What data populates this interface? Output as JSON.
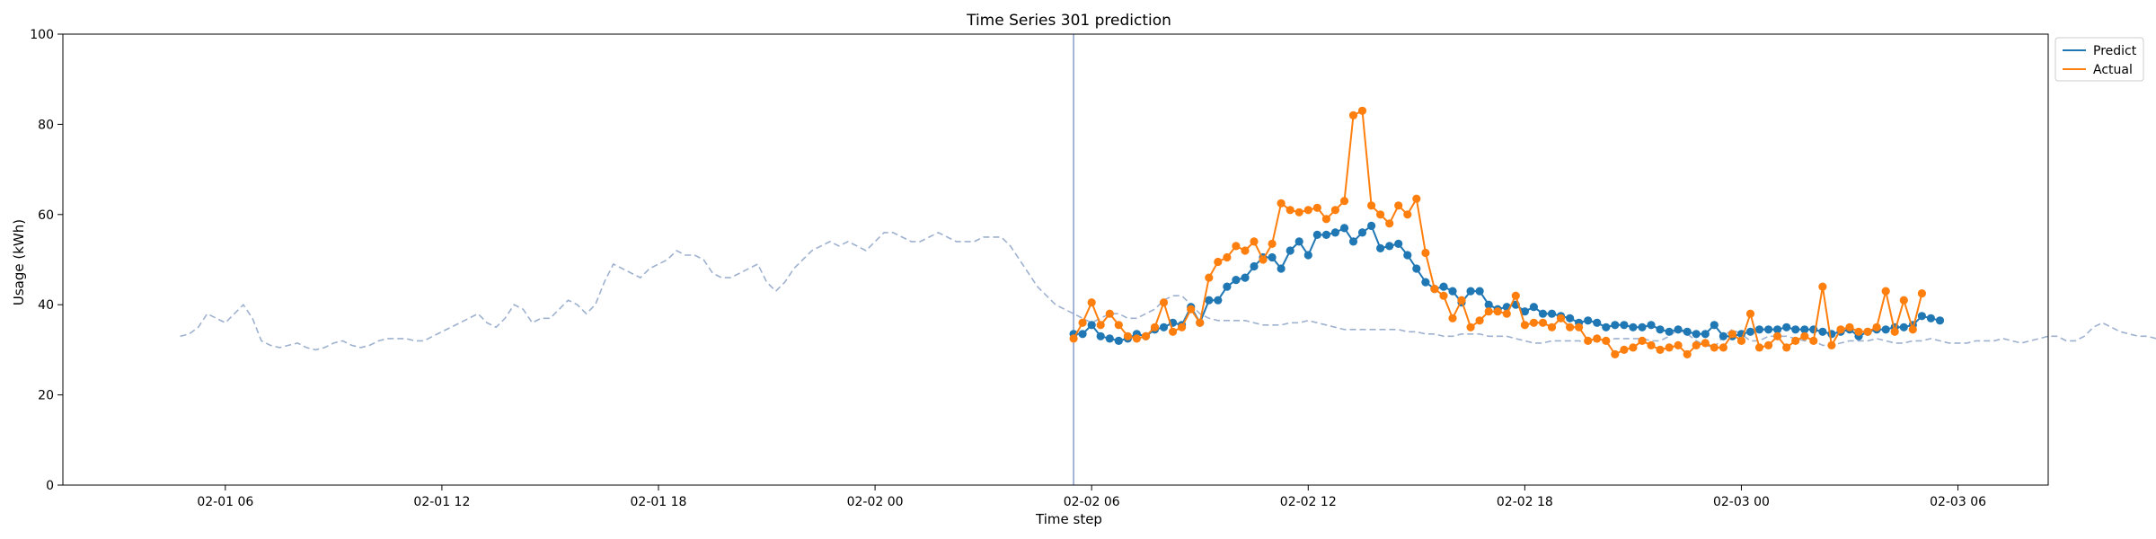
{
  "chart_data": {
    "type": "line",
    "title": "Time Series 301 prediction",
    "xlabel": "Time step",
    "ylabel": "Usage (kWh)",
    "ylim": [
      0,
      100
    ],
    "yticks": [
      0,
      20,
      40,
      60,
      80,
      100
    ],
    "xlim_hours": [
      1.5,
      56.5
    ],
    "x_ticks": [
      {
        "hour": 6,
        "label": "02-01 06"
      },
      {
        "hour": 12,
        "label": "02-01 12"
      },
      {
        "hour": 18,
        "label": "02-01 18"
      },
      {
        "hour": 24,
        "label": "02-02 00"
      },
      {
        "hour": 30,
        "label": "02-02 06"
      },
      {
        "hour": 36,
        "label": "02-02 12"
      },
      {
        "hour": 42,
        "label": "02-02 18"
      },
      {
        "hour": 48,
        "label": "02-03 00"
      },
      {
        "hour": 54,
        "label": "02-03 06"
      }
    ],
    "x_step_hours": 0.25,
    "forecast_start_hour": 29.5,
    "legend_position": "upper-right-outside",
    "grid": false,
    "history": {
      "x_start_hour": 4.75,
      "color": "#9eb1cf",
      "values": [
        33,
        33.5,
        35,
        38,
        37,
        36,
        38,
        40,
        37,
        32,
        31,
        30.5,
        31,
        31.5,
        30.5,
        30,
        30.5,
        31.5,
        32,
        31,
        30.5,
        31,
        32,
        32.5,
        32.5,
        32.5,
        32,
        32,
        33,
        34,
        35,
        36,
        37,
        38,
        36,
        35,
        37,
        40,
        39,
        36,
        37,
        37,
        39,
        41,
        40,
        38,
        40,
        45,
        49,
        48,
        47,
        46,
        48,
        49,
        50,
        52,
        51,
        51,
        50,
        47,
        46,
        46,
        47,
        48,
        49,
        45,
        43,
        45,
        48,
        50,
        52,
        53,
        54,
        53,
        54,
        53,
        52,
        54,
        56,
        56,
        55,
        54,
        54,
        55,
        56,
        55,
        54,
        54,
        54,
        55,
        55,
        55,
        53,
        50,
        47,
        44,
        42,
        40,
        39,
        38,
        37,
        36,
        37,
        38,
        38,
        37,
        37,
        38,
        39,
        41,
        42,
        42,
        40,
        38,
        37,
        36.5,
        36.5,
        36.5,
        36.5,
        36,
        35.5,
        35.5,
        35.5,
        36,
        36,
        36.5,
        36,
        35.5,
        35,
        34.5,
        34.5,
        34.5,
        34.5,
        34.5,
        34.5,
        34.5,
        34,
        34,
        33.5,
        33.5,
        33,
        33,
        33.5,
        33.5,
        33.5,
        33,
        33,
        33,
        32.5,
        32,
        31.5,
        31.5,
        32,
        32,
        32,
        32,
        31.5,
        32,
        32,
        32.5,
        32.5,
        32.5,
        32.5,
        32,
        32,
        33,
        34.5,
        33.5,
        32,
        31,
        30.5,
        33,
        34.5,
        33.5,
        32,
        32,
        33,
        33,
        33,
        32.5,
        32,
        32,
        31,
        31,
        31.5,
        32,
        32,
        32,
        32.5,
        32,
        31.5,
        31.5,
        32,
        32,
        32.5,
        32,
        31.5,
        31.5,
        31.5,
        32,
        32,
        32,
        32.5,
        32,
        31.5,
        32,
        32.5,
        33,
        33,
        32,
        32,
        33,
        35,
        36,
        35,
        34,
        33.5,
        33,
        33,
        32.5,
        32.5,
        33,
        33,
        33
      ]
    },
    "series": [
      {
        "name": "Predict",
        "color": "#1f77b4",
        "x_start_hour": 29.5,
        "values": [
          33.5,
          33.5,
          35.5,
          33,
          32.5,
          32,
          32.5,
          33.5,
          33,
          34.5,
          35,
          36,
          35.5,
          39.5,
          36,
          41,
          41,
          44,
          45.5,
          46,
          48.5,
          50.5,
          50.5,
          48,
          52,
          54,
          51,
          55.5,
          55.5,
          56,
          57,
          54,
          56,
          57.5,
          52.5,
          53,
          53.5,
          51,
          48,
          45,
          43.5,
          44,
          43,
          40.5,
          43,
          43,
          40,
          39,
          39.5,
          40,
          38.5,
          39.5,
          38,
          38,
          37.5,
          37,
          36,
          36.5,
          36,
          35,
          35.5,
          35.5,
          35,
          35,
          35.5,
          34.5,
          34,
          34.5,
          34,
          33.5,
          33.5,
          35.5,
          33,
          33,
          33.5,
          34,
          34.5,
          34.5,
          34.5,
          35,
          34.5,
          34.5,
          34.5,
          34,
          33.5,
          34,
          34.5,
          33,
          34,
          34.5,
          34.5,
          35,
          35,
          35.5,
          37.5,
          37,
          36.5
        ]
      },
      {
        "name": "Actual",
        "color": "#ff7f0e",
        "x_start_hour": 29.5,
        "values": [
          32.5,
          36,
          40.5,
          35.5,
          38,
          35.5,
          33,
          32.5,
          33,
          35,
          40.5,
          34,
          35,
          39,
          36,
          46,
          49.5,
          50.5,
          53,
          52,
          54,
          50,
          53.5,
          62.5,
          61,
          60.5,
          61,
          61.5,
          59,
          61,
          63,
          82,
          83,
          62,
          60,
          58,
          62,
          60,
          63.5,
          51.5,
          43.5,
          42,
          37,
          41,
          35,
          36.5,
          38.5,
          38.5,
          38,
          42,
          35.5,
          36,
          36,
          35,
          37,
          35,
          35,
          32,
          32.5,
          32,
          29,
          30,
          30.5,
          32,
          31,
          30,
          30.5,
          31,
          29,
          31,
          31.5,
          30.5,
          30.5,
          33.5,
          32,
          38,
          30.5,
          31,
          33,
          30.5,
          32,
          33,
          32,
          44,
          31,
          34.5,
          35,
          34,
          34,
          35,
          43,
          34,
          41,
          34.5,
          42.5
        ]
      }
    ]
  }
}
